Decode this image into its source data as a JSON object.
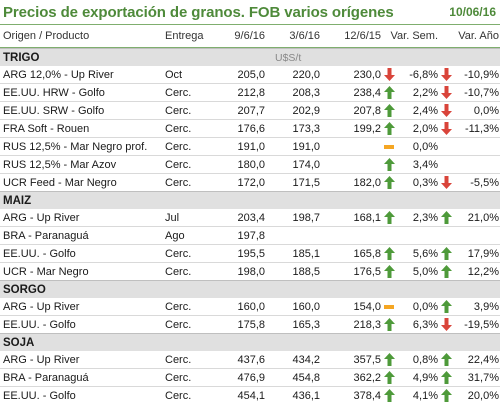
{
  "title": "Precios de exportación de granos. FOB varios orígenes",
  "date": "10/06/16",
  "headers": [
    "Origen / Producto",
    "Entrega",
    "9/6/16",
    "3/6/16",
    "12/6/15",
    "Var. Sem.",
    "Var. Año"
  ],
  "unit_label": "U$S/t",
  "colors": {
    "title": "#4e8a3a",
    "up": "#4e9a3a",
    "down": "#d9443a",
    "flat": "#f5a623",
    "section_bg": "#e0e0e0"
  },
  "sections": [
    {
      "name": "TRIGO",
      "show_unit": true,
      "rows": [
        {
          "origin": "ARG 12,0% - Up River",
          "delivery": "Oct",
          "v1": "205,0",
          "v2": "220,0",
          "v3": "230,0",
          "icon1": "down",
          "p1": "-6,8%",
          "icon2": "down",
          "p2": "-10,9%"
        },
        {
          "origin": "EE.UU. HRW - Golfo",
          "delivery": "Cerc.",
          "v1": "212,8",
          "v2": "208,3",
          "v3": "238,4",
          "icon1": "up",
          "p1": "2,2%",
          "icon2": "down",
          "p2": "-10,7%"
        },
        {
          "origin": "EE.UU. SRW - Golfo",
          "delivery": "Cerc.",
          "v1": "207,7",
          "v2": "202,9",
          "v3": "207,8",
          "icon1": "up",
          "p1": "2,4%",
          "icon2": "down",
          "p2": "0,0%"
        },
        {
          "origin": "FRA Soft - Rouen",
          "delivery": "Cerc.",
          "v1": "176,6",
          "v2": "173,3",
          "v3": "199,2",
          "icon1": "up",
          "p1": "2,0%",
          "icon2": "down",
          "p2": "-11,3%"
        },
        {
          "origin": "RUS 12,5% - Mar Negro prof.",
          "delivery": "Cerc.",
          "v1": "191,0",
          "v2": "191,0",
          "v3": "",
          "icon1": "flat",
          "p1": "0,0%",
          "icon2": "",
          "p2": ""
        },
        {
          "origin": "RUS 12,5% - Mar Azov",
          "delivery": "Cerc.",
          "v1": "180,0",
          "v2": "174,0",
          "v3": "",
          "icon1": "up",
          "p1": "3,4%",
          "icon2": "",
          "p2": ""
        },
        {
          "origin": "UCR Feed - Mar Negro",
          "delivery": "Cerc.",
          "v1": "172,0",
          "v2": "171,5",
          "v3": "182,0",
          "icon1": "up",
          "p1": "0,3%",
          "icon2": "down",
          "p2": "-5,5%"
        }
      ]
    },
    {
      "name": "MAIZ",
      "show_unit": false,
      "rows": [
        {
          "origin": "ARG - Up River",
          "delivery": "Jul",
          "v1": "203,4",
          "v2": "198,7",
          "v3": "168,1",
          "icon1": "up",
          "p1": "2,3%",
          "icon2": "up",
          "p2": "21,0%"
        },
        {
          "origin": "BRA - Paranaguá",
          "delivery": "Ago",
          "v1": "197,8",
          "v2": "",
          "v3": "",
          "icon1": "",
          "p1": "",
          "icon2": "",
          "p2": ""
        },
        {
          "origin": "EE.UU. - Golfo",
          "delivery": "Cerc.",
          "v1": "195,5",
          "v2": "185,1",
          "v3": "165,8",
          "icon1": "up",
          "p1": "5,6%",
          "icon2": "up",
          "p2": "17,9%"
        },
        {
          "origin": "UCR - Mar Negro",
          "delivery": "Cerc.",
          "v1": "198,0",
          "v2": "188,5",
          "v3": "176,5",
          "icon1": "up",
          "p1": "5,0%",
          "icon2": "up",
          "p2": "12,2%"
        }
      ]
    },
    {
      "name": "SORGO",
      "show_unit": false,
      "rows": [
        {
          "origin": "ARG - Up River",
          "delivery": "Cerc.",
          "v1": "160,0",
          "v2": "160,0",
          "v3": "154,0",
          "icon1": "flat",
          "p1": "0,0%",
          "icon2": "up",
          "p2": "3,9%"
        },
        {
          "origin": "EE.UU. - Golfo",
          "delivery": "Cerc.",
          "v1": "175,8",
          "v2": "165,3",
          "v3": "218,3",
          "icon1": "up",
          "p1": "6,3%",
          "icon2": "down",
          "p2": "-19,5%"
        }
      ]
    },
    {
      "name": "SOJA",
      "show_unit": false,
      "rows": [
        {
          "origin": "ARG - Up River",
          "delivery": "Cerc.",
          "v1": "437,6",
          "v2": "434,2",
          "v3": "357,5",
          "icon1": "up",
          "p1": "0,8%",
          "icon2": "up",
          "p2": "22,4%"
        },
        {
          "origin": "BRA - Paranaguá",
          "delivery": "Cerc.",
          "v1": "476,9",
          "v2": "454,8",
          "v3": "362,2",
          "icon1": "up",
          "p1": "4,9%",
          "icon2": "up",
          "p2": "31,7%"
        },
        {
          "origin": "EE.UU. - Golfo",
          "delivery": "Cerc.",
          "v1": "454,1",
          "v2": "436,1",
          "v3": "378,4",
          "icon1": "up",
          "p1": "4,1%",
          "icon2": "up",
          "p2": "20,0%"
        }
      ]
    }
  ]
}
